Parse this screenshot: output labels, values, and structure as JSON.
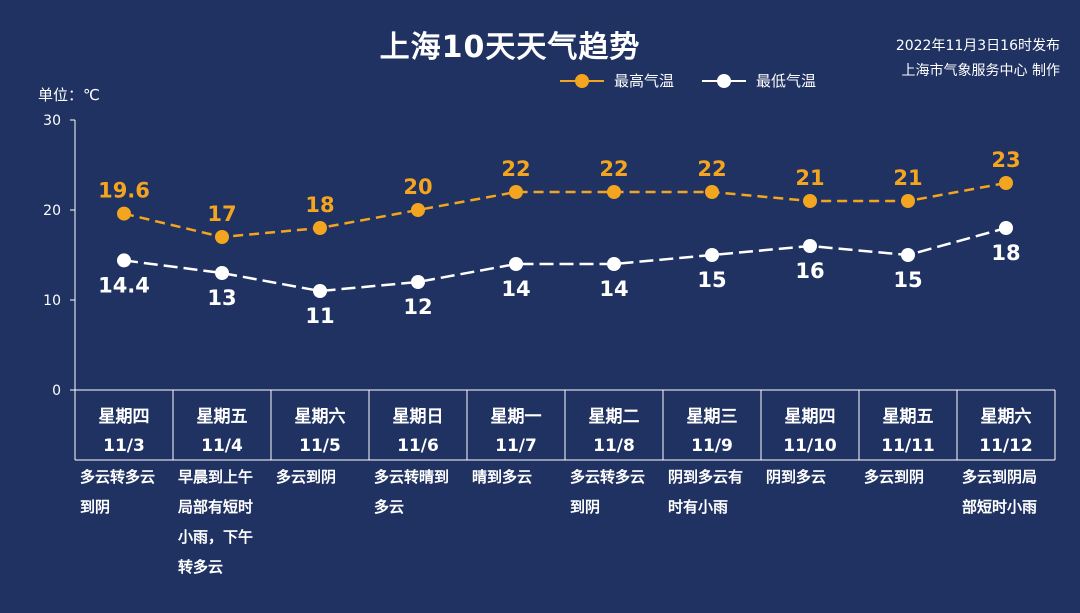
{
  "title": "上海10天天气趋势",
  "publish": {
    "line1": "2022年11月3日16时发布",
    "line2": "上海市气象服务中心 制作"
  },
  "unit_label": "单位：℃",
  "colors": {
    "background": "#1f3262",
    "high": "#f4a51f",
    "low": "#ffffff"
  },
  "chart_data": {
    "type": "line",
    "categories": [
      "11/3",
      "11/4",
      "11/5",
      "11/6",
      "11/7",
      "11/8",
      "11/9",
      "11/10",
      "11/11",
      "11/12"
    ],
    "weekdays": [
      "星期四",
      "星期五",
      "星期六",
      "星期日",
      "星期一",
      "星期二",
      "星期三",
      "星期四",
      "星期五",
      "星期六"
    ],
    "series": [
      {
        "name": "最高气温",
        "values": [
          19.6,
          17,
          18,
          20,
          22,
          22,
          22,
          21,
          21,
          23
        ],
        "labels": [
          "19.6",
          "17",
          "18",
          "20",
          "22",
          "22",
          "22",
          "21",
          "21",
          "23"
        ]
      },
      {
        "name": "最低气温",
        "values": [
          14.4,
          13,
          11,
          12,
          14,
          14,
          15,
          16,
          15,
          18
        ],
        "labels": [
          "14.4",
          "13",
          "11",
          "12",
          "14",
          "14",
          "15",
          "16",
          "15",
          "18"
        ]
      }
    ],
    "ylim": [
      0,
      30
    ],
    "yticks": [
      "0",
      "10",
      "20",
      "30"
    ],
    "grid": false,
    "legend": "top"
  },
  "weather": [
    [
      "多云转多云",
      "到阴"
    ],
    [
      "早晨到上午",
      "局部有短时",
      "小雨，下午",
      "转多云"
    ],
    [
      "多云到阴"
    ],
    [
      "多云转晴到",
      "多云"
    ],
    [
      "晴到多云"
    ],
    [
      "多云转多云",
      "到阴"
    ],
    [
      "阴到多云有",
      "时有小雨"
    ],
    [
      "阴到多云"
    ],
    [
      "多云到阴"
    ],
    [
      "多云到阴局",
      "部短时小雨"
    ]
  ]
}
